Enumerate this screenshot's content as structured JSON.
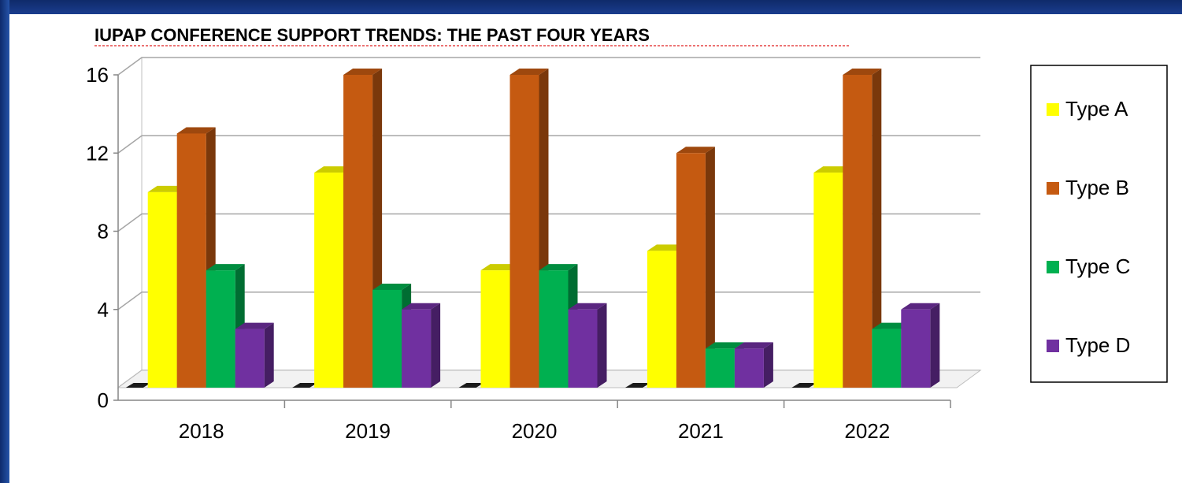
{
  "banner_text": "",
  "chart_data": {
    "type": "bar",
    "title": "IUPAP CONFERENCE SUPPORT TRENDS:  THE PAST FOUR YEARS",
    "categories": [
      "2018",
      "2019",
      "2020",
      "2021",
      "2022"
    ],
    "series": [
      {
        "name": "Type A",
        "values": [
          10,
          11,
          6,
          7,
          11
        ],
        "color": "#ffff00"
      },
      {
        "name": "Type B",
        "values": [
          13,
          16,
          16,
          12,
          16
        ],
        "color": "#c55a11"
      },
      {
        "name": "Type C",
        "values": [
          6,
          5,
          6,
          2,
          3
        ],
        "color": "#00b050"
      },
      {
        "name": "Type D",
        "values": [
          3,
          4,
          4,
          2,
          4
        ],
        "color": "#7030a0"
      }
    ],
    "yticks": [
      0,
      4,
      8,
      12,
      16
    ],
    "ylim": [
      0,
      16
    ],
    "grid": true,
    "legend_position": "right",
    "style": "3d-clustered-column"
  }
}
